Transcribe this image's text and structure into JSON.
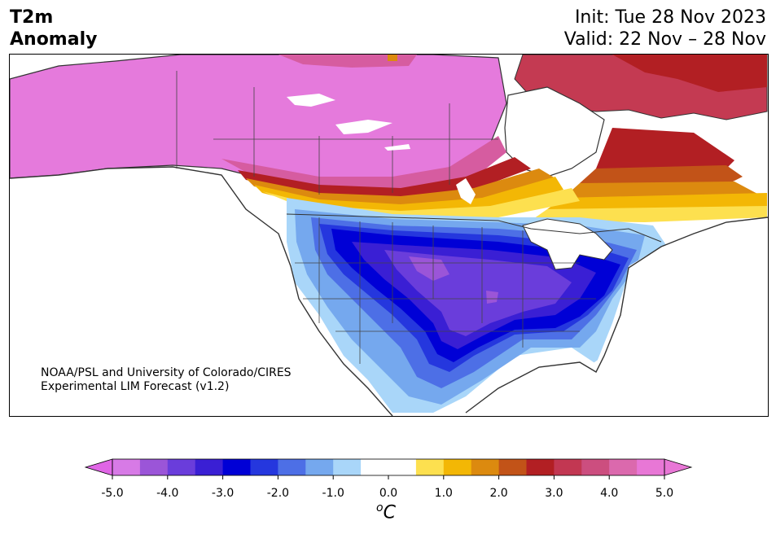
{
  "header": {
    "title_line1": "T2m",
    "title_line2": "Anomaly",
    "init": "Init: Tue 28 Nov 2023",
    "valid": "Valid: 22 Nov – 28 Nov"
  },
  "credit": {
    "line1": "NOAA/PSL and University of Colorado/CIRES",
    "line2": "Experimental LIM Forecast (v1.2)"
  },
  "colorbar": {
    "units_sup": "o",
    "units_main": "C",
    "ticks": [
      "-5.0",
      "-4.0",
      "-3.0",
      "-2.0",
      "-1.0",
      "0.0",
      "1.0",
      "2.0",
      "3.0",
      "4.0",
      "5.0"
    ],
    "colors": [
      "#d77ae6",
      "#9b55d8",
      "#6a3ddb",
      "#3a1fd4",
      "#0000d6",
      "#2537de",
      "#4d6fe6",
      "#75a8ee",
      "#a9d6f9",
      "#ffffff",
      "#ffffff",
      "#fde04f",
      "#f3b705",
      "#dc8a0f",
      "#c25318",
      "#b21f23",
      "#c23752",
      "#cc4e7f",
      "#db69ad",
      "#e877d6"
    ],
    "under_color": "#e066e6",
    "over_color": "#e877d6"
  },
  "map": {
    "region": "North America",
    "palette": {
      "pink": "#e57adc",
      "magenta": "#d65ca0",
      "crimson": "#c43a52",
      "darkred": "#b21f23",
      "rust": "#c25318",
      "orange": "#dc8a0f",
      "gold": "#f3b705",
      "yellow": "#fde04f",
      "lightblue": "#a9d6f9",
      "skyblue": "#75a8ee",
      "cornflower": "#4d6fe6",
      "royal": "#2537de",
      "blue": "#0000d6",
      "indigo": "#3a1fd4",
      "violet": "#6a3ddb",
      "purple": "#9b55d8",
      "lakes": "#ffffff",
      "boundary": "#333333"
    }
  }
}
